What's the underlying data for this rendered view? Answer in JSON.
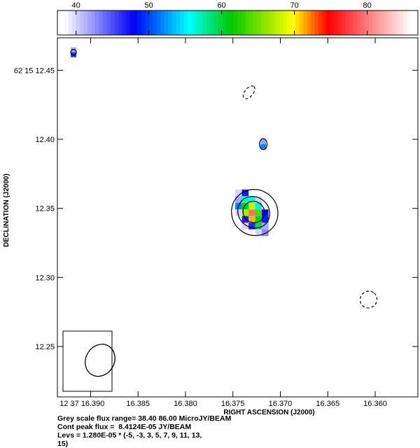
{
  "chart_data": {
    "type": "heatmap",
    "xlabel": "RIGHT ASCENSION (J2000)",
    "ylabel": "DECLINATION (J2000)",
    "xaxis": {
      "ticks": [
        16.39,
        16.385,
        16.38,
        16.375,
        16.37,
        16.365,
        16.36
      ],
      "tick_labels": [
        "12 37 16.390",
        "16.385",
        "16.380",
        "16.375",
        "16.370",
        "16.365",
        "16.360"
      ],
      "range": [
        16.3935,
        16.3555
      ]
    },
    "yaxis": {
      "ticks": [
        12.45,
        12.4,
        12.35,
        12.3,
        12.25
      ],
      "tick_labels": [
        "62 15 12.45",
        "12.40",
        "12.35",
        "12.30",
        "12.25"
      ],
      "range": [
        12.2135,
        12.4735
      ]
    },
    "colorbar": {
      "range": [
        38.4,
        86.0
      ],
      "ticks": [
        40,
        50,
        60,
        70,
        80
      ],
      "tick_labels": [
        "40",
        "50",
        "60",
        "70",
        "80"
      ],
      "colormap": "white-blue-cyan-green-yellow-red-pink"
    },
    "image_blobs": [
      {
        "ra": 16.373,
        "dec": 12.3468,
        "value_range": [
          40,
          86
        ]
      },
      {
        "ra": 16.3718,
        "dec": 12.3965,
        "value_range": [
          40,
          52
        ]
      },
      {
        "ra": 16.3918,
        "dec": 12.463,
        "value_range": [
          40,
          50
        ]
      }
    ],
    "contours": [
      {
        "level": 3,
        "style": "solid",
        "center_ra": 16.3727,
        "center_dec": 12.347,
        "ra_halfwidth": 0.0024,
        "dec_halfwidth": 0.017
      },
      {
        "level": 5,
        "style": "solid",
        "center_ra": 16.3728,
        "center_dec": 12.3472,
        "ra_halfwidth": 0.0016,
        "dec_halfwidth": 0.012
      },
      {
        "level": 7,
        "style": "solid",
        "center_ra": 16.3728,
        "center_dec": 12.3474,
        "ra_halfwidth": 0.0011,
        "dec_halfwidth": 0.008
      },
      {
        "level": 3,
        "style": "solid",
        "center_ra": 16.3718,
        "center_dec": 12.3965,
        "ra_halfwidth": 0.0004,
        "dec_halfwidth": 0.004
      },
      {
        "level": 3,
        "style": "solid",
        "center_ra": 16.3918,
        "center_dec": 12.463,
        "ra_halfwidth": 0.0003,
        "dec_halfwidth": 0.002
      },
      {
        "level": -3,
        "style": "dashed",
        "center_ra": 16.3733,
        "center_dec": 12.434,
        "ra_halfwidth": 0.0008,
        "dec_halfwidth": 0.003
      },
      {
        "level": -3,
        "style": "dashed",
        "center_ra": 16.3607,
        "center_dec": 12.284,
        "ra_halfwidth": 0.0009,
        "dec_halfwidth": 0.006
      }
    ],
    "beam": {
      "ra": 16.389,
      "dec": 12.24,
      "ra_halfwidth": 0.0015,
      "dec_halfwidth": 0.012,
      "pa_deg": 30
    },
    "annotations": [
      "Grey scale flux range= 38.40 86.00 MicroJY/BEAM",
      "Cont peak flux =  8.4124E-05 JY/BEAM",
      "Levs = 1.280E-05 * (-5, -3, 3, 5, 7, 9, 11, 13,",
      "15)"
    ],
    "grid": false
  }
}
